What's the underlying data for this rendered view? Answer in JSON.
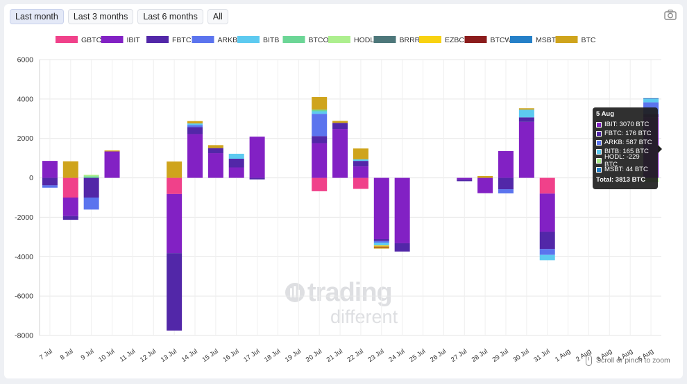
{
  "controls": {
    "ranges": [
      "Last month",
      "Last 3 months",
      "Last 6 months",
      "All"
    ],
    "active": "Last month",
    "camera_icon": "camera-icon",
    "zoom_hint": "Scroll or pinch to zoom"
  },
  "watermark": {
    "line1": "trading",
    "line2": "different"
  },
  "chart_data": {
    "type": "bar",
    "stacked": true,
    "unit": "BTC",
    "title": "",
    "xlabel": "",
    "ylabel": "",
    "ylim": [
      -8000,
      6000
    ],
    "yticks": [
      -8000,
      -6000,
      -4000,
      -2000,
      0,
      2000,
      4000,
      6000
    ],
    "grid": true,
    "legend_position": "top",
    "categories": [
      "7 Jul",
      "8 Jul",
      "9 Jul",
      "10 Jul",
      "11 Jul",
      "12 Jul",
      "13 Jul",
      "14 Jul",
      "15 Jul",
      "16 Jul",
      "17 Jul",
      "18 Jul",
      "19 Jul",
      "20 Jul",
      "21 Jul",
      "22 Jul",
      "23 Jul",
      "24 Jul",
      "25 Jul",
      "26 Jul",
      "27 Jul",
      "28 Jul",
      "29 Jul",
      "30 Jul",
      "31 Jul",
      "1 Aug",
      "2 Aug",
      "3 Aug",
      "4 Aug",
      "5 Aug"
    ],
    "series": [
      {
        "name": "GBTC",
        "color": "#f0418a",
        "values": [
          0,
          -1000,
          0,
          0,
          0,
          0,
          -820,
          0,
          0,
          0,
          0,
          0,
          0,
          -680,
          0,
          -560,
          0,
          0,
          0,
          0,
          0,
          0,
          0,
          0,
          -800,
          0,
          0,
          0,
          0,
          0
        ]
      },
      {
        "name": "IBIT",
        "color": "#8221c4",
        "values": [
          860,
          -940,
          0,
          1340,
          0,
          0,
          -3000,
          2220,
          1250,
          530,
          2090,
          0,
          0,
          1760,
          2480,
          580,
          -3110,
          -3320,
          0,
          0,
          -90,
          -780,
          1360,
          2840,
          -1940,
          0,
          0,
          0,
          0,
          3070
        ]
      },
      {
        "name": "FBTC",
        "color": "#5227a8",
        "values": [
          -380,
          -190,
          -1000,
          0,
          0,
          0,
          -3930,
          350,
          260,
          440,
          -80,
          0,
          0,
          360,
          310,
          280,
          -100,
          -420,
          0,
          0,
          -80,
          0,
          -580,
          230,
          -870,
          0,
          0,
          0,
          0,
          176
        ]
      },
      {
        "name": "ARKB",
        "color": "#5b74ee",
        "values": [
          -120,
          0,
          -610,
          0,
          0,
          0,
          0,
          110,
          0,
          0,
          0,
          0,
          0,
          1130,
          0,
          0,
          -80,
          0,
          0,
          0,
          0,
          0,
          -210,
          0,
          -300,
          0,
          0,
          0,
          0,
          587
        ]
      },
      {
        "name": "BITB",
        "color": "#5dcaf0",
        "values": [
          0,
          0,
          0,
          0,
          0,
          0,
          0,
          80,
          0,
          250,
          0,
          0,
          0,
          130,
          0,
          80,
          -140,
          0,
          0,
          0,
          0,
          0,
          0,
          390,
          -270,
          0,
          0,
          0,
          0,
          165
        ]
      },
      {
        "name": "BTCO",
        "color": "#6cd696",
        "values": [
          0,
          0,
          80,
          0,
          0,
          0,
          0,
          0,
          0,
          0,
          0,
          0,
          0,
          80,
          0,
          0,
          0,
          0,
          0,
          0,
          0,
          0,
          0,
          0,
          0,
          0,
          0,
          0,
          0,
          0
        ]
      },
      {
        "name": "HODL",
        "color": "#adef8e",
        "values": [
          0,
          0,
          80,
          0,
          0,
          0,
          0,
          0,
          0,
          0,
          0,
          0,
          0,
          0,
          0,
          0,
          0,
          0,
          0,
          0,
          0,
          0,
          0,
          0,
          0,
          0,
          0,
          0,
          0,
          -229
        ]
      },
      {
        "name": "BRRR",
        "color": "#4d777a",
        "values": [
          0,
          0,
          0,
          0,
          0,
          0,
          0,
          0,
          0,
          0,
          0,
          0,
          0,
          0,
          0,
          0,
          0,
          0,
          0,
          0,
          0,
          0,
          0,
          0,
          0,
          0,
          0,
          0,
          0,
          0
        ]
      },
      {
        "name": "EZBC",
        "color": "#f8d211",
        "values": [
          0,
          0,
          0,
          0,
          0,
          0,
          0,
          0,
          0,
          0,
          0,
          0,
          0,
          0,
          0,
          0,
          -60,
          0,
          0,
          0,
          0,
          0,
          0,
          0,
          0,
          0,
          0,
          0,
          0,
          0
        ]
      },
      {
        "name": "BTCW",
        "color": "#8b1c1c",
        "values": [
          0,
          0,
          0,
          0,
          0,
          0,
          0,
          0,
          0,
          0,
          0,
          0,
          0,
          0,
          0,
          0,
          -40,
          0,
          0,
          0,
          0,
          0,
          0,
          0,
          0,
          0,
          0,
          0,
          0,
          0
        ]
      },
      {
        "name": "MSBT",
        "color": "#2580c8",
        "values": [
          0,
          0,
          0,
          0,
          0,
          0,
          0,
          0,
          0,
          0,
          0,
          0,
          0,
          0,
          0,
          0,
          0,
          0,
          0,
          0,
          0,
          0,
          0,
          0,
          0,
          0,
          0,
          0,
          0,
          44
        ]
      },
      {
        "name": "BTC",
        "color": "#cfa41c",
        "values": [
          0,
          840,
          0,
          50,
          0,
          0,
          830,
          120,
          150,
          0,
          0,
          0,
          0,
          640,
          100,
          550,
          -60,
          0,
          0,
          0,
          0,
          90,
          0,
          70,
          0,
          0,
          0,
          0,
          0,
          0
        ]
      }
    ],
    "tooltip": {
      "title": "5 Aug",
      "rows": [
        {
          "label": "IBIT: 3070 BTC",
          "color": "#8221c4"
        },
        {
          "label": "FBTC: 176 BTC",
          "color": "#5227a8"
        },
        {
          "label": "ARKB: 587 BTC",
          "color": "#5b74ee"
        },
        {
          "label": "BITB: 165 BTC",
          "color": "#5dcaf0"
        },
        {
          "label": "HODL: -229 BTC",
          "color": "#adef8e"
        },
        {
          "label": "MSBT: 44 BTC",
          "color": "#2580c8"
        }
      ],
      "total": "Total: 3813 BTC"
    }
  }
}
